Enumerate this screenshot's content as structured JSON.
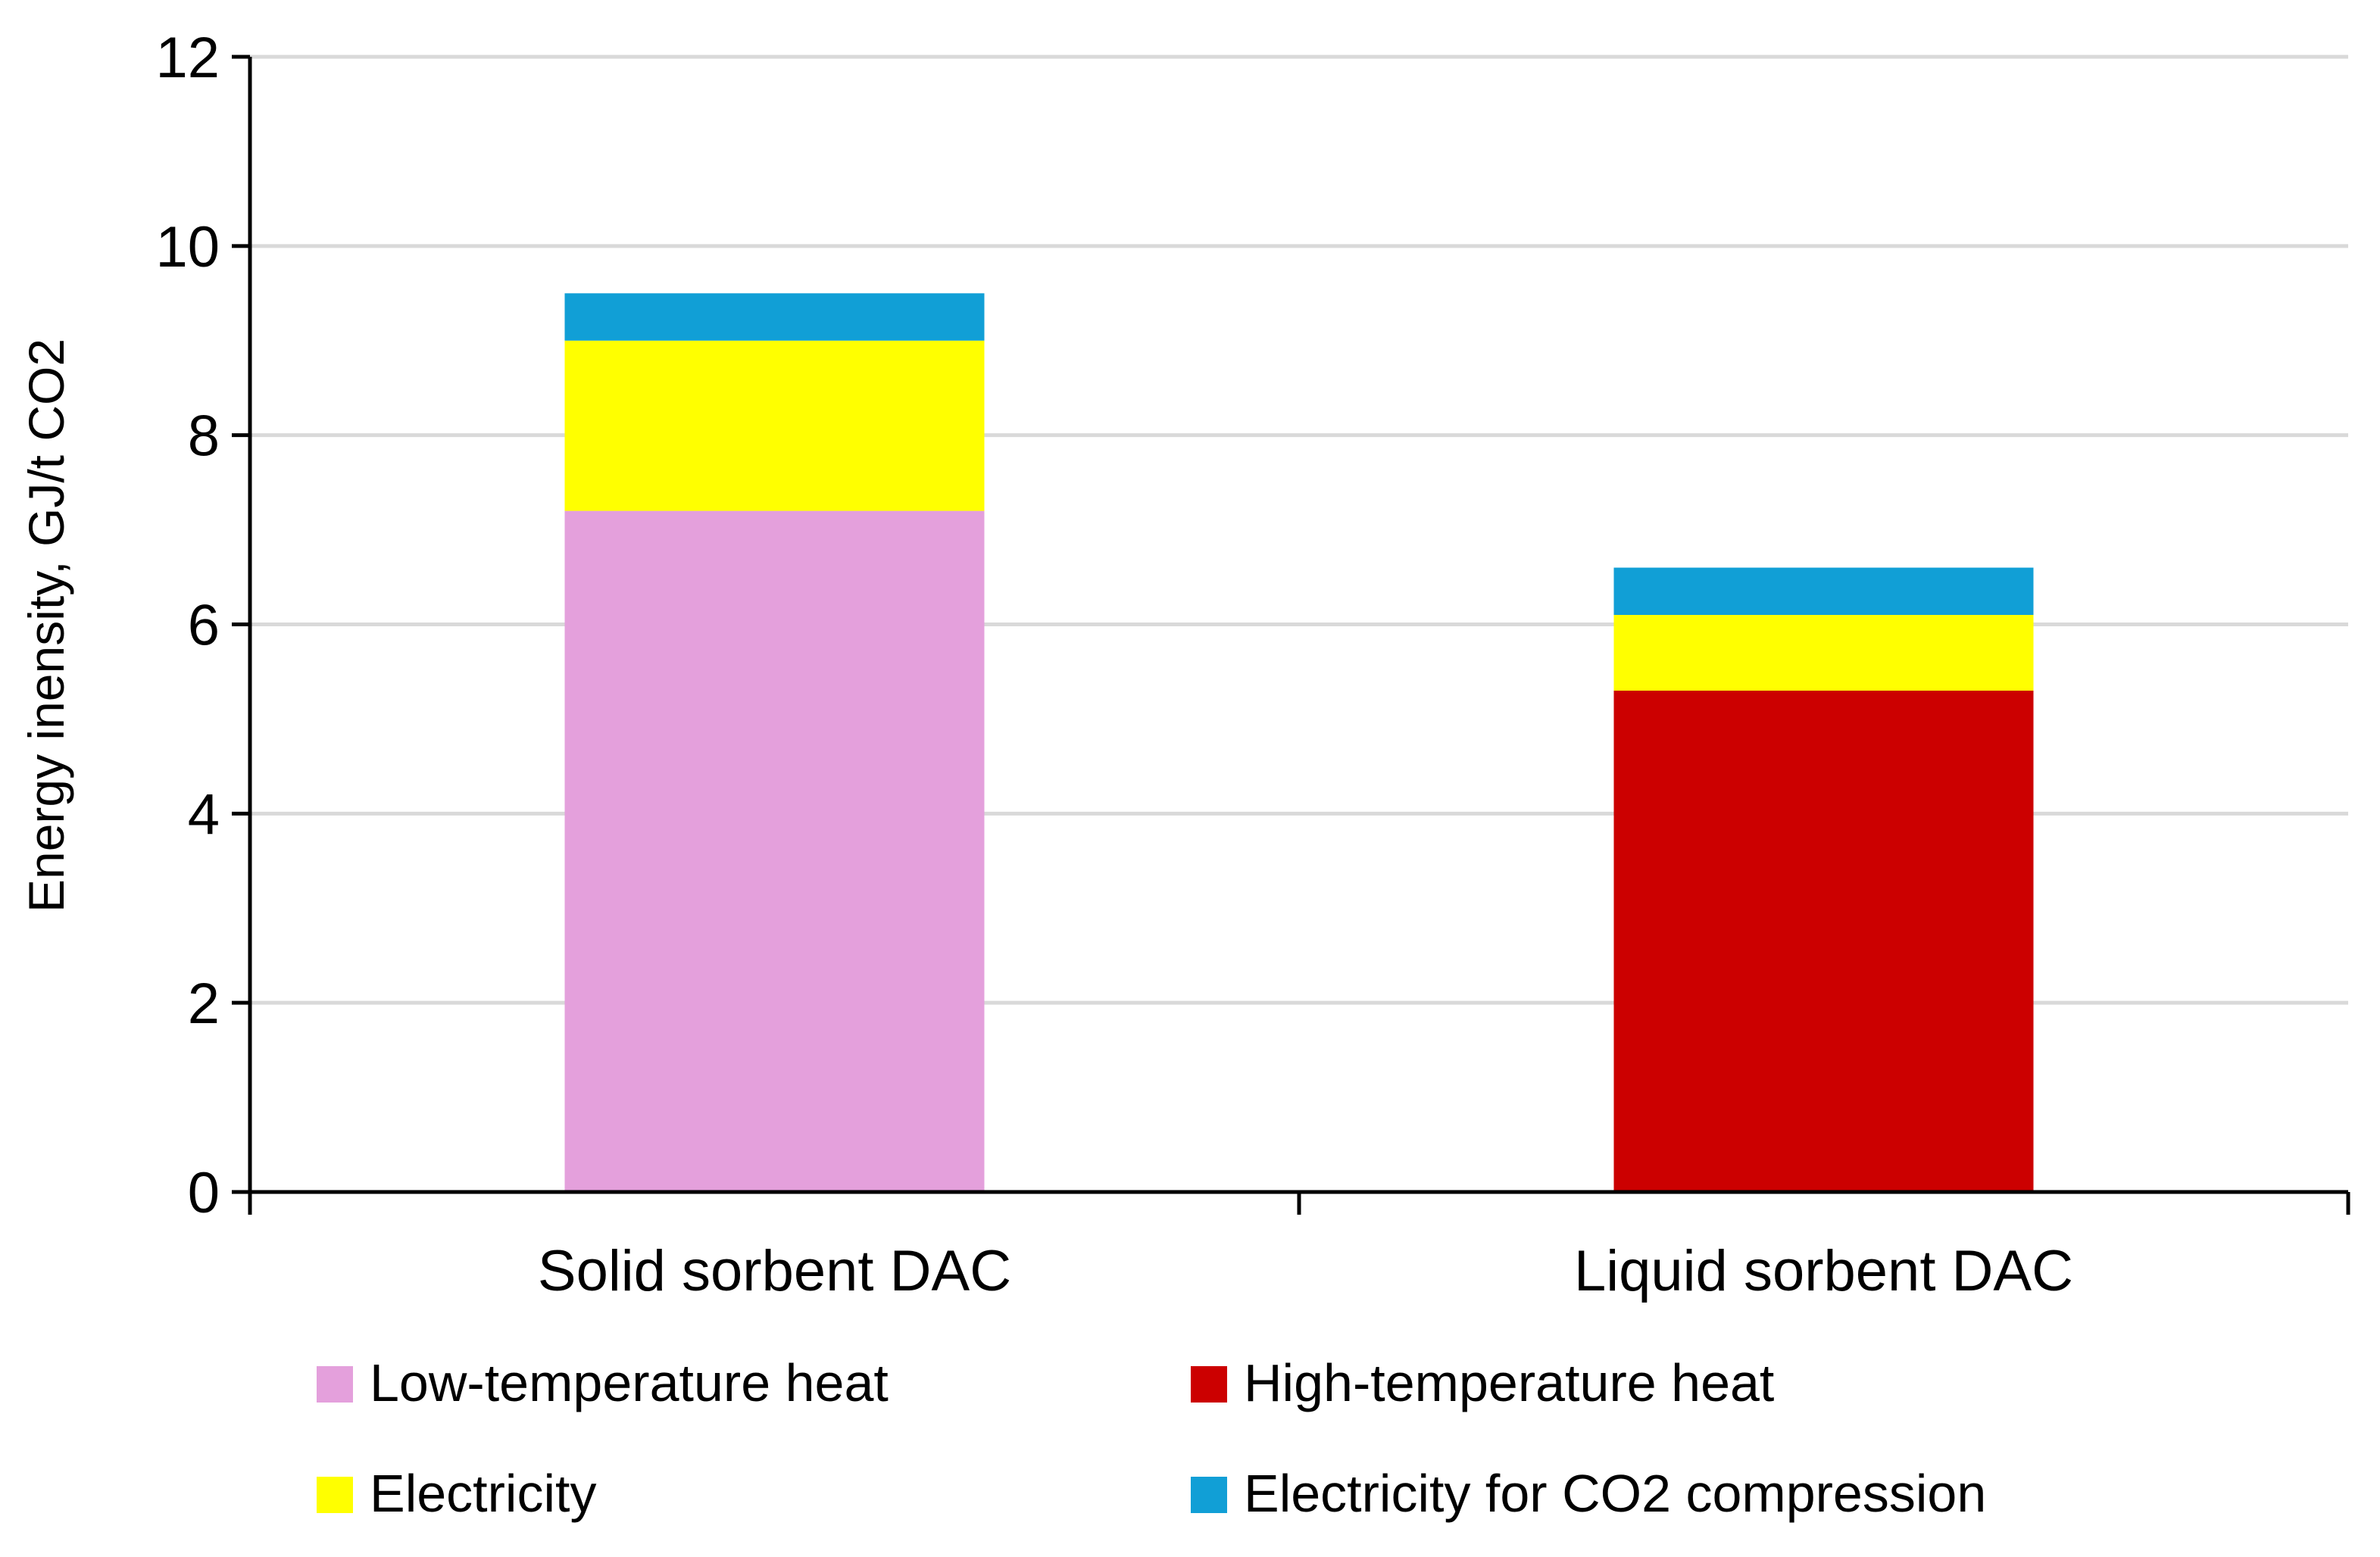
{
  "chart_data": {
    "type": "bar",
    "stacked": true,
    "title": "",
    "xlabel": "",
    "ylabel": "Energy inensity, GJ/t CO2",
    "ylim": [
      0,
      12
    ],
    "yticks": [
      0,
      2,
      4,
      6,
      8,
      10,
      12
    ],
    "grid": true,
    "legend_position": "bottom",
    "categories": [
      "Solid sorbent DAC",
      "Liquid sorbent DAC"
    ],
    "series": [
      {
        "name": "Low-temperature heat",
        "color": "#E4A0DC",
        "values": [
          7.2,
          0
        ]
      },
      {
        "name": "High-temperature heat",
        "color": "#CC0000",
        "values": [
          0,
          5.3
        ]
      },
      {
        "name": "Electricity",
        "color": "#FFFF00",
        "values": [
          1.8,
          0.8
        ]
      },
      {
        "name": "Electricity for CO2 compression",
        "color": "#119FD6",
        "values": [
          0.5,
          0.5
        ]
      }
    ]
  }
}
